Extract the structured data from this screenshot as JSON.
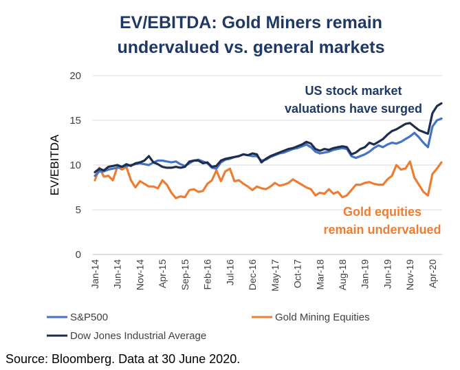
{
  "chart_data": {
    "type": "line",
    "title_line1": "EV/EBITDA: Gold Miners remain",
    "title_line2": "undervalued vs. general markets",
    "ylabel": "EV/EBITDA",
    "ylim": [
      0,
      20
    ],
    "yticks": [
      0,
      5,
      10,
      15,
      20
    ],
    "xticks": [
      "Jan-14",
      "Jun-14",
      "Nov-14",
      "Apr-15",
      "Sep-15",
      "Feb-16",
      "Jul-16",
      "Dec-16",
      "May-17",
      "Oct-17",
      "Mar-18",
      "Aug-18",
      "Jan-19",
      "Jun-19",
      "Nov-19",
      "Apr-20"
    ],
    "x_range_months": [
      0,
      77
    ],
    "grid": "horizontal",
    "legend_placement": "bottom",
    "series": [
      {
        "name": "S&P500",
        "color": "#4472c4",
        "values": [
          8.8,
          9.3,
          9.3,
          9.5,
          9.6,
          9.7,
          9.8,
          9.9,
          10.0,
          10.1,
          10.2,
          10.1,
          10.0,
          10.3,
          10.5,
          10.5,
          10.4,
          10.3,
          10.4,
          10.1,
          9.9,
          10.2,
          10.5,
          10.6,
          10.4,
          10.2,
          9.7,
          9.6,
          10.3,
          10.6,
          10.7,
          10.9,
          11.0,
          11.2,
          11.1,
          11.0,
          11.0,
          10.5,
          10.6,
          10.9,
          11.1,
          11.3,
          11.4,
          11.6,
          11.8,
          11.9,
          12.1,
          12.3,
          12.0,
          11.5,
          11.3,
          11.4,
          11.5,
          11.7,
          11.8,
          11.9,
          11.8,
          11.0,
          10.8,
          11.0,
          11.2,
          11.5,
          11.9,
          12.2,
          12.0,
          12.3,
          12.5,
          12.4,
          12.6,
          12.9,
          13.2,
          13.6,
          13.1,
          12.5,
          12.0,
          14.3,
          15.0,
          15.2
        ]
      },
      {
        "name": "Gold Mining Equities",
        "color": "#ed7d31",
        "values": [
          8.3,
          9.7,
          8.7,
          8.8,
          8.3,
          9.8,
          9.5,
          9.8,
          8.3,
          7.5,
          8.2,
          7.9,
          7.6,
          7.6,
          7.4,
          8.3,
          7.8,
          6.9,
          6.3,
          6.5,
          6.4,
          7.2,
          7.3,
          7.0,
          7.1,
          7.9,
          8.3,
          9.4,
          8.2,
          9.3,
          9.6,
          8.2,
          8.3,
          7.9,
          7.6,
          7.2,
          7.6,
          7.4,
          7.3,
          7.6,
          8.0,
          7.7,
          7.8,
          8.0,
          8.4,
          8.1,
          7.8,
          7.5,
          7.3,
          6.6,
          6.9,
          6.8,
          7.3,
          6.8,
          7.0,
          6.4,
          6.6,
          7.2,
          7.8,
          7.8,
          8.0,
          8.1,
          7.9,
          7.8,
          7.8,
          8.4,
          8.8,
          10.0,
          9.5,
          9.6,
          10.4,
          8.6,
          7.8,
          7.0,
          6.6,
          9.0,
          9.6,
          10.3
        ]
      },
      {
        "name": "Dow Jones Industrial Average",
        "color": "#1f2d4d",
        "values": [
          9.2,
          9.6,
          9.4,
          9.8,
          9.9,
          10.0,
          9.8,
          10.1,
          9.9,
          10.2,
          10.3,
          10.5,
          11.0,
          10.3,
          10.1,
          9.8,
          9.7,
          9.7,
          9.8,
          9.7,
          9.8,
          10.4,
          10.5,
          10.5,
          10.2,
          10.3,
          9.8,
          9.9,
          10.5,
          10.7,
          10.8,
          10.9,
          11.0,
          11.2,
          11.1,
          11.3,
          11.2,
          10.3,
          10.7,
          11.0,
          11.2,
          11.4,
          11.6,
          11.8,
          11.9,
          12.1,
          12.3,
          12.6,
          12.4,
          11.8,
          11.6,
          11.8,
          11.7,
          11.9,
          12.0,
          12.1,
          12.0,
          11.2,
          11.4,
          11.8,
          12.0,
          12.5,
          12.3,
          12.6,
          12.9,
          13.4,
          13.8,
          14.0,
          14.3,
          14.6,
          14.7,
          14.3,
          13.9,
          13.7,
          13.5,
          15.8,
          16.6,
          16.9
        ]
      }
    ],
    "annotations": [
      {
        "text": "US stock market",
        "color": "#1f3864"
      },
      {
        "text": "valuations  have surged",
        "color": "#1f3864"
      },
      {
        "text": "Gold equities",
        "color": "#ed7d31"
      },
      {
        "text": "remain undervalued",
        "color": "#ed7d31"
      }
    ]
  },
  "source": "Source: Bloomberg. Data at 30 June 2020."
}
